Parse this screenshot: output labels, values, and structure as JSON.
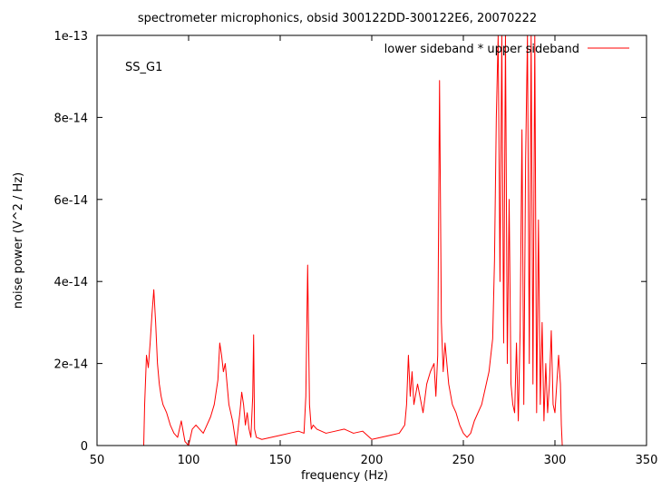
{
  "chart_data": {
    "type": "line",
    "title": "spectrometer microphonics, obsid 300122DD-300122E6, 20070222",
    "xlabel": "frequency (Hz)",
    "ylabel": "noise power (V^2 / Hz)",
    "annotation": "SS_G1",
    "xlim": [
      50,
      350
    ],
    "ylim": [
      0,
      1e-13
    ],
    "x_ticks": [
      50,
      100,
      150,
      200,
      250,
      300,
      350
    ],
    "x_tick_labels": [
      "50",
      "100",
      "150",
      "200",
      "250",
      "300",
      "350"
    ],
    "y_ticks": [
      0,
      2e-14,
      4e-14,
      6e-14,
      8e-14,
      1e-13
    ],
    "y_tick_labels": [
      "0",
      "2e-14",
      "4e-14",
      "6e-14",
      "8e-14",
      "1e-13"
    ],
    "legend_position": "top-right",
    "series": [
      {
        "name": "lower sideband * upper sideband",
        "color": "#ff0000",
        "x": [
          50,
          75.5,
          76,
          77,
          78,
          79,
          80,
          81,
          82,
          83,
          84,
          85,
          86,
          88,
          90,
          92,
          94,
          96,
          98,
          100,
          102,
          104,
          106,
          108,
          110,
          112,
          114,
          116,
          117,
          118,
          119,
          120,
          122,
          124,
          126,
          128,
          129,
          130,
          131,
          132,
          133,
          134,
          135,
          135.5,
          136,
          137,
          140,
          145,
          150,
          155,
          160,
          163,
          164,
          165,
          166,
          167,
          168,
          170,
          175,
          180,
          185,
          190,
          195,
          200,
          205,
          210,
          215,
          218,
          219,
          220,
          221,
          222,
          223,
          225,
          228,
          230,
          232,
          234,
          235,
          236,
          237,
          238,
          239,
          240,
          242,
          244,
          246,
          248,
          250,
          252,
          254,
          256,
          258,
          260,
          262,
          264,
          266,
          267,
          268,
          269,
          270,
          271,
          272,
          273,
          274,
          275,
          276,
          277,
          278,
          279,
          280,
          281,
          282,
          283,
          284,
          285,
          286,
          287,
          288,
          289,
          290,
          291,
          292,
          293,
          294,
          295,
          296,
          297,
          298,
          299,
          300,
          301,
          302,
          303,
          303.5,
          304,
          350
        ],
        "y": [
          0,
          0,
          1e-14,
          2.2e-14,
          1.9e-14,
          2.5e-14,
          3.2e-14,
          3.8e-14,
          3e-14,
          2e-14,
          1.5e-14,
          1.2e-14,
          1e-14,
          8e-15,
          5e-15,
          3e-15,
          2e-15,
          6e-15,
          1e-15,
          0,
          4e-15,
          5e-15,
          4e-15,
          3e-15,
          5e-15,
          7e-15,
          1e-14,
          1.6e-14,
          2.5e-14,
          2.2e-14,
          1.8e-14,
          2e-14,
          1e-14,
          6e-15,
          0,
          8e-15,
          1.3e-14,
          1e-14,
          5e-15,
          8e-15,
          4e-15,
          2e-15,
          1.2e-14,
          2.7e-14,
          4e-15,
          2e-15,
          1.5e-15,
          2e-15,
          2.5e-15,
          3e-15,
          3.5e-15,
          3e-15,
          1.2e-14,
          4.4e-14,
          1e-14,
          4e-15,
          5e-15,
          4e-15,
          3e-15,
          3.5e-15,
          4e-15,
          3e-15,
          3.5e-15,
          1.5e-15,
          2e-15,
          2.5e-15,
          3e-15,
          5e-15,
          1e-14,
          2.2e-14,
          1.2e-14,
          1.8e-14,
          1e-14,
          1.5e-14,
          8e-15,
          1.5e-14,
          1.8e-14,
          2e-14,
          1.2e-14,
          2.2e-14,
          8.9e-14,
          3e-14,
          1.8e-14,
          2.5e-14,
          1.5e-14,
          1e-14,
          8e-15,
          5e-15,
          3e-15,
          2e-15,
          3e-15,
          6e-15,
          8e-15,
          1e-14,
          1.4e-14,
          1.8e-14,
          2.6e-14,
          4.5e-14,
          8e-14,
          1e-13,
          4e-14,
          1e-13,
          2.5e-14,
          1e-13,
          2e-14,
          6e-14,
          1.5e-14,
          1e-14,
          8e-15,
          2.5e-14,
          6e-15,
          2.8e-14,
          7.7e-14,
          1e-14,
          7e-14,
          1e-13,
          2e-14,
          1e-13,
          1.5e-14,
          1e-13,
          8e-15,
          5.5e-14,
          1e-14,
          3e-14,
          6e-15,
          2e-14,
          8e-15,
          1.5e-14,
          2.8e-14,
          1e-14,
          8e-15,
          1.5e-14,
          2.2e-14,
          1.5e-14,
          5e-15,
          0,
          0
        ]
      }
    ]
  }
}
